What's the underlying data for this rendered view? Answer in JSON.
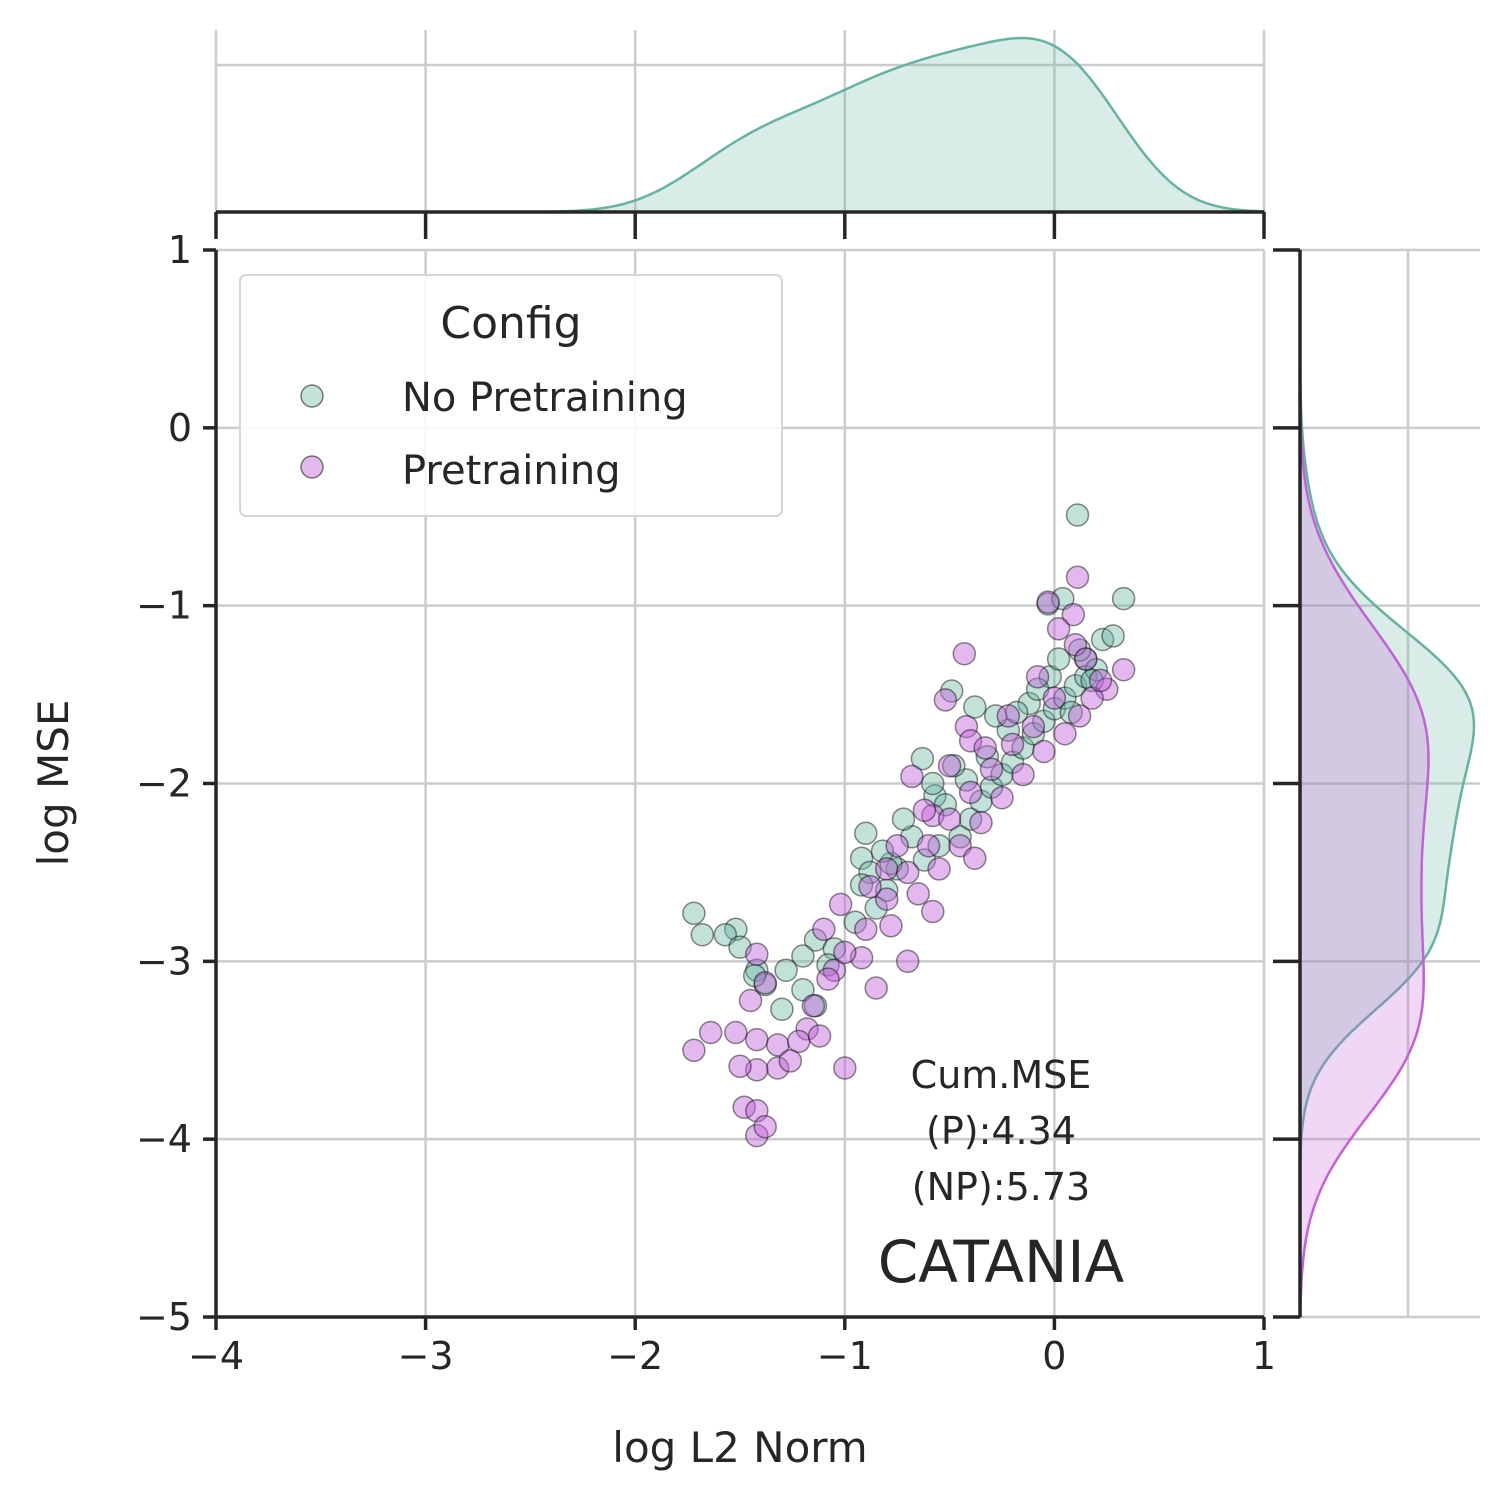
{
  "chart_data": {
    "type": "scatter",
    "xlabel": "log L2 Norm",
    "ylabel": "log MSE",
    "xlim": [
      -4,
      1
    ],
    "ylim": [
      -5,
      1
    ],
    "x_ticks": [
      "−4",
      "−3",
      "−2",
      "−1",
      "0",
      "1"
    ],
    "y_ticks": [
      "1",
      "0",
      "−1",
      "−2",
      "−3",
      "−4",
      "−5"
    ],
    "grid": true,
    "legend": {
      "title": "Config",
      "placement": "top-left",
      "entries": [
        "No Pretraining",
        "Pretraining"
      ]
    },
    "annotation_lines": [
      "Cum.MSE",
      "(P):4.34",
      "(NP):5.73"
    ],
    "panel_label": "CATANIA",
    "marginals": "kde",
    "series": [
      {
        "name": "No Pretraining",
        "color": "#66b3a1",
        "points": [
          [
            0.11,
            -0.49
          ],
          [
            0.33,
            -0.96
          ],
          [
            -0.03,
            -0.99
          ],
          [
            0.04,
            -0.96
          ],
          [
            0.23,
            -1.19
          ],
          [
            0.28,
            -1.17
          ],
          [
            0.15,
            -1.3
          ],
          [
            -0.49,
            -1.48
          ],
          [
            -0.38,
            -1.57
          ],
          [
            -0.63,
            -1.86
          ],
          [
            -0.57,
            -2.07
          ],
          [
            -0.9,
            -2.28
          ],
          [
            -0.92,
            -2.42
          ],
          [
            -0.88,
            -2.5
          ],
          [
            -0.92,
            -2.57
          ],
          [
            -1.72,
            -2.73
          ],
          [
            -1.52,
            -2.82
          ],
          [
            -1.57,
            -2.85
          ],
          [
            -1.68,
            -2.85
          ],
          [
            -1.5,
            -2.92
          ],
          [
            -1.14,
            -2.88
          ],
          [
            -1.05,
            -2.93
          ],
          [
            -1.2,
            -2.97
          ],
          [
            -1.08,
            -3.02
          ],
          [
            -1.42,
            -3.05
          ],
          [
            -1.38,
            -3.13
          ],
          [
            -1.28,
            -3.05
          ],
          [
            -1.2,
            -3.16
          ],
          [
            -1.3,
            -3.27
          ],
          [
            -1.14,
            -3.25
          ],
          [
            -1.43,
            -3.08
          ],
          [
            -0.8,
            -2.6
          ],
          [
            -0.75,
            -2.48
          ],
          [
            -0.62,
            -2.43
          ],
          [
            -0.55,
            -2.35
          ],
          [
            -0.45,
            -2.3
          ],
          [
            -0.4,
            -2.2
          ],
          [
            -0.35,
            -2.1
          ],
          [
            -0.3,
            -2.02
          ],
          [
            -0.25,
            -1.95
          ],
          [
            -0.2,
            -1.88
          ],
          [
            -0.15,
            -1.8
          ],
          [
            -0.1,
            -1.72
          ],
          [
            -0.05,
            -1.65
          ],
          [
            0.0,
            -1.58
          ],
          [
            0.05,
            -1.52
          ],
          [
            0.1,
            -1.45
          ],
          [
            0.15,
            -1.4
          ],
          [
            0.2,
            -1.36
          ],
          [
            0.08,
            -1.6
          ],
          [
            -0.12,
            -1.55
          ],
          [
            -0.22,
            -1.7
          ],
          [
            -0.32,
            -1.85
          ],
          [
            -0.42,
            -1.98
          ],
          [
            -0.52,
            -2.12
          ],
          [
            -0.68,
            -2.3
          ],
          [
            -0.78,
            -2.45
          ],
          [
            -0.85,
            -2.7
          ],
          [
            -0.95,
            -2.78
          ],
          [
            0.12,
            -1.25
          ],
          [
            0.18,
            -1.42
          ],
          [
            -0.02,
            -1.4
          ],
          [
            -0.28,
            -1.62
          ],
          [
            -0.48,
            -1.9
          ],
          [
            -0.58,
            -2.0
          ],
          [
            -0.72,
            -2.2
          ],
          [
            -0.82,
            -2.38
          ],
          [
            0.02,
            -1.3
          ],
          [
            -0.08,
            -1.47
          ],
          [
            -0.18,
            -1.6
          ]
        ]
      },
      {
        "name": "Pretraining",
        "color": "#c261d9",
        "points": [
          [
            0.11,
            -0.84
          ],
          [
            -0.03,
            -0.98
          ],
          [
            0.09,
            -1.05
          ],
          [
            0.02,
            -1.13
          ],
          [
            0.1,
            -1.22
          ],
          [
            0.33,
            -1.36
          ],
          [
            0.25,
            -1.47
          ],
          [
            -0.43,
            -1.27
          ],
          [
            -0.52,
            -1.53
          ],
          [
            -0.42,
            -1.68
          ],
          [
            -0.4,
            -1.76
          ],
          [
            -0.5,
            -1.9
          ],
          [
            -0.68,
            -1.96
          ],
          [
            -0.58,
            -2.18
          ],
          [
            -0.8,
            -2.48
          ],
          [
            -1.02,
            -2.68
          ],
          [
            -1.1,
            -2.82
          ],
          [
            -1.05,
            -3.05
          ],
          [
            -1.15,
            -3.25
          ],
          [
            -1.18,
            -3.38
          ],
          [
            -1.45,
            -3.22
          ],
          [
            -1.42,
            -2.96
          ],
          [
            -1.38,
            -3.12
          ],
          [
            -1.72,
            -3.5
          ],
          [
            -1.64,
            -3.4
          ],
          [
            -1.52,
            -3.4
          ],
          [
            -1.42,
            -3.44
          ],
          [
            -1.32,
            -3.47
          ],
          [
            -1.22,
            -3.45
          ],
          [
            -1.12,
            -3.42
          ],
          [
            -1.32,
            -3.6
          ],
          [
            -1.42,
            -3.61
          ],
          [
            -1.26,
            -3.56
          ],
          [
            -1.0,
            -3.6
          ],
          [
            -1.5,
            -3.59
          ],
          [
            -1.48,
            -3.82
          ],
          [
            -1.42,
            -3.84
          ],
          [
            -1.42,
            -3.98
          ],
          [
            -1.38,
            -3.93
          ],
          [
            -0.85,
            -3.15
          ],
          [
            -0.7,
            -3.0
          ],
          [
            -0.92,
            -2.98
          ],
          [
            -0.78,
            -2.8
          ],
          [
            -0.65,
            -2.62
          ],
          [
            -0.55,
            -2.48
          ],
          [
            -0.45,
            -2.35
          ],
          [
            -0.35,
            -2.22
          ],
          [
            -0.25,
            -2.08
          ],
          [
            -0.15,
            -1.95
          ],
          [
            -0.05,
            -1.82
          ],
          [
            0.05,
            -1.72
          ],
          [
            0.12,
            -1.62
          ],
          [
            0.18,
            -1.52
          ],
          [
            0.22,
            -1.42
          ],
          [
            -0.1,
            -1.68
          ],
          [
            -0.2,
            -1.78
          ],
          [
            -0.3,
            -1.92
          ],
          [
            -0.4,
            -2.05
          ],
          [
            -0.5,
            -2.2
          ],
          [
            -0.6,
            -2.35
          ],
          [
            -0.7,
            -2.5
          ],
          [
            -0.8,
            -2.65
          ],
          [
            -0.9,
            -2.82
          ],
          [
            -1.0,
            -2.95
          ],
          [
            0.0,
            -1.52
          ],
          [
            -0.08,
            -1.4
          ],
          [
            0.15,
            -1.3
          ],
          [
            -0.22,
            -1.62
          ],
          [
            -0.33,
            -1.8
          ],
          [
            -0.62,
            -2.15
          ],
          [
            -0.75,
            -2.35
          ],
          [
            -0.88,
            -2.58
          ],
          [
            -1.08,
            -3.1
          ],
          [
            -0.58,
            -2.72
          ],
          [
            -0.38,
            -2.42
          ]
        ]
      }
    ]
  }
}
